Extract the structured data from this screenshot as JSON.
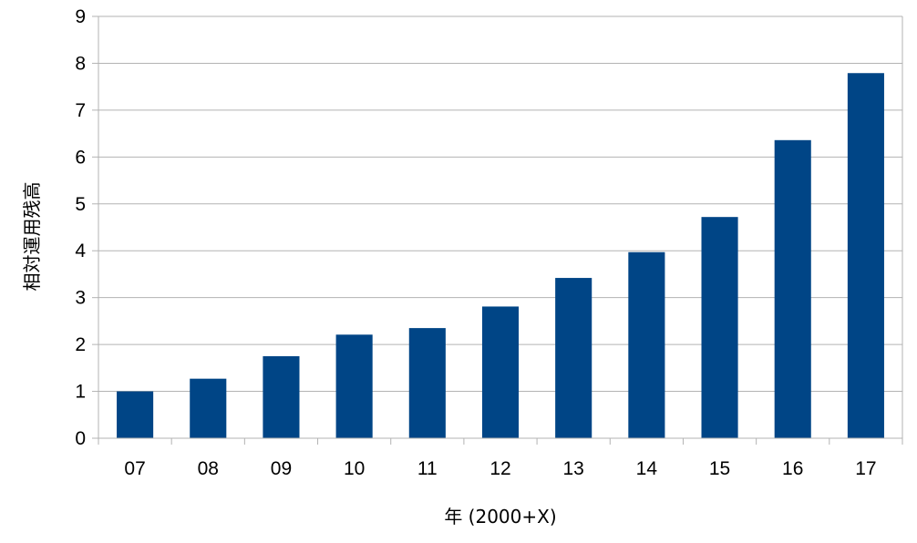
{
  "chart_data": {
    "type": "bar",
    "categories": [
      "07",
      "08",
      "09",
      "10",
      "11",
      "12",
      "13",
      "14",
      "15",
      "16",
      "17"
    ],
    "values": [
      1.0,
      1.27,
      1.75,
      2.21,
      2.35,
      2.81,
      3.42,
      3.97,
      4.72,
      6.36,
      7.79
    ],
    "xlabel": "年 (2000+X)",
    "ylabel": "相対運用残高",
    "ylim": [
      0,
      9
    ],
    "yticks": [
      "0",
      "1",
      "2",
      "3",
      "4",
      "5",
      "6",
      "7",
      "8",
      "9"
    ],
    "grid": true,
    "bar_color": "#004586",
    "grid_color": "#b3b3b3"
  }
}
